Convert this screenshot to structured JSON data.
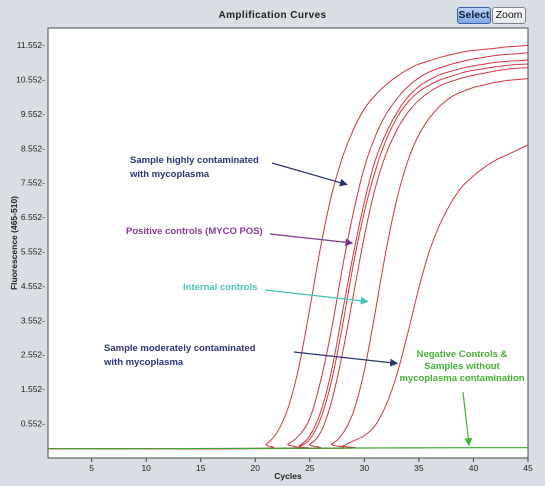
{
  "window": {
    "title": "Amplification Curves",
    "select_label": "Select",
    "zoom_label": "Zoom"
  },
  "chart_data": {
    "type": "line",
    "title": "Amplification Curves",
    "xlabel": "Cycles",
    "ylabel": "Fluorescence (465-510)",
    "xlim": [
      1,
      45
    ],
    "ylim": [
      -0.45,
      12.05
    ],
    "xticks": [
      5,
      10,
      15,
      20,
      25,
      30,
      35,
      40,
      45
    ],
    "xtick_labels": [
      "5",
      "10",
      "15",
      "20",
      "25",
      "30",
      "35",
      "40",
      "45"
    ],
    "yticks": [
      0.552,
      1.552,
      2.552,
      3.552,
      4.552,
      5.552,
      6.552,
      7.552,
      8.552,
      9.552,
      10.552,
      11.552
    ],
    "ytick_labels": [
      "0.552-",
      "1.552-",
      "2.552-",
      "3.552-",
      "4.552-",
      "5.552-",
      "6.552-",
      "7.552-",
      "8.552-",
      "9.552-",
      "10.552-",
      "11.552-"
    ],
    "grid": false,
    "colors": {
      "positive": "#d8343c",
      "negative": "#3fa535",
      "arrow_blue": "#2a3470",
      "arrow_purple": "#7e3c8f",
      "arrow_teal": "#45c2b5",
      "annot_blue": "#2c3480",
      "annot_purple": "#8a3a98",
      "annot_teal": "#4cc3b4",
      "annot_green": "#44b035"
    },
    "baseline": -0.18,
    "series": [
      {
        "color": "#d8343c",
        "x": [
          1,
          20,
          21,
          22,
          23,
          24,
          25,
          26,
          27,
          28,
          29,
          30,
          31,
          32,
          33,
          34,
          35,
          36,
          37,
          38,
          39,
          40,
          41,
          42,
          43,
          44,
          45
        ],
        "y": [
          -0.18,
          -0.17,
          -0.05,
          0.3,
          1.0,
          2.2,
          3.9,
          5.7,
          7.2,
          8.3,
          9.1,
          9.7,
          10.1,
          10.4,
          10.65,
          10.85,
          11.0,
          11.1,
          11.2,
          11.28,
          11.35,
          11.4,
          11.43,
          11.46,
          11.5,
          11.52,
          11.55
        ]
      },
      {
        "color": "#d8343c",
        "x": [
          1,
          22,
          23,
          24,
          25,
          26,
          27,
          28,
          29,
          30,
          31,
          32,
          33,
          34,
          35,
          36,
          37,
          38,
          39,
          40,
          41,
          42,
          43,
          44,
          45
        ],
        "y": [
          -0.18,
          -0.17,
          -0.05,
          0.2,
          0.7,
          1.8,
          3.3,
          5.1,
          6.7,
          8.0,
          8.9,
          9.55,
          10.0,
          10.35,
          10.6,
          10.78,
          10.9,
          11.0,
          11.08,
          11.15,
          11.2,
          11.25,
          11.28,
          11.3,
          11.33
        ]
      },
      {
        "color": "#d8343c",
        "x": [
          1,
          23,
          24,
          25,
          26,
          27,
          28,
          29,
          30,
          31,
          32,
          33,
          34,
          35,
          36,
          37,
          38,
          39,
          40,
          41,
          42,
          43,
          44,
          45
        ],
        "y": [
          -0.18,
          -0.17,
          -0.1,
          0.2,
          0.9,
          2.1,
          3.8,
          5.5,
          7.0,
          8.2,
          9.0,
          9.6,
          10.05,
          10.35,
          10.55,
          10.7,
          10.8,
          10.88,
          10.95,
          11.0,
          11.05,
          11.08,
          11.1,
          11.12
        ]
      },
      {
        "color": "#d8343c",
        "x": [
          1,
          23,
          24,
          25,
          26,
          27,
          28,
          29,
          30,
          31,
          32,
          33,
          34,
          35,
          36,
          37,
          38,
          39,
          40,
          41,
          42,
          43,
          44,
          45
        ],
        "y": [
          -0.18,
          -0.17,
          -0.12,
          0.1,
          0.7,
          1.8,
          3.4,
          5.2,
          6.7,
          7.9,
          8.8,
          9.45,
          9.9,
          10.2,
          10.4,
          10.55,
          10.65,
          10.75,
          10.82,
          10.87,
          10.92,
          10.96,
          10.99,
          11.0
        ]
      },
      {
        "color": "#d8343c",
        "x": [
          1,
          24,
          25,
          26,
          27,
          28,
          29,
          30,
          31,
          32,
          33,
          34,
          35,
          36,
          37,
          38,
          39,
          40,
          41,
          42,
          43,
          44,
          45
        ],
        "y": [
          -0.18,
          -0.17,
          -0.05,
          0.3,
          1.2,
          2.6,
          4.3,
          6.0,
          7.4,
          8.4,
          9.1,
          9.6,
          9.95,
          10.2,
          10.38,
          10.5,
          10.6,
          10.68,
          10.74,
          10.8,
          10.85,
          10.88,
          10.9
        ]
      },
      {
        "color": "#d8343c",
        "x": [
          1,
          26,
          27,
          28,
          29,
          30,
          31,
          32,
          33,
          34,
          35,
          36,
          37,
          38,
          39,
          40,
          41,
          42,
          43,
          44,
          45
        ],
        "y": [
          -0.18,
          -0.17,
          -0.05,
          0.25,
          0.9,
          2.1,
          3.8,
          5.6,
          7.1,
          8.2,
          8.95,
          9.45,
          9.8,
          10.05,
          10.2,
          10.32,
          10.4,
          10.47,
          10.52,
          10.55,
          10.58
        ]
      },
      {
        "color": "#d8343c",
        "x": [
          1,
          27,
          28,
          29,
          30,
          31,
          32,
          33,
          34,
          35,
          36,
          37,
          38,
          39,
          40,
          41,
          42,
          43,
          44,
          45
        ],
        "y": [
          -0.18,
          -0.17,
          -0.1,
          0.05,
          0.2,
          0.5,
          1.1,
          2.0,
          3.2,
          4.5,
          5.6,
          6.4,
          7.0,
          7.45,
          7.75,
          8.0,
          8.2,
          8.35,
          8.5,
          8.65
        ]
      },
      {
        "color": "#3fa535",
        "x": [
          1,
          10,
          20,
          30,
          40,
          45
        ],
        "y": [
          -0.18,
          -0.18,
          -0.17,
          -0.16,
          -0.15,
          -0.15
        ]
      }
    ],
    "annotations": [
      {
        "text_lines": [
          "Sample highly contaminated",
          "with mycoplasma"
        ],
        "color_key": "annot_blue",
        "arrow_key": "arrow_blue",
        "arrow_to": [
          28.4,
          7.5
        ]
      },
      {
        "text_lines": [
          "Positive controls (MYCO POS)"
        ],
        "color_key": "annot_purple",
        "arrow_key": "arrow_purple",
        "arrow_to": [
          28.9,
          5.8
        ]
      },
      {
        "text_lines": [
          "Internal controls"
        ],
        "color_key": "annot_teal",
        "arrow_key": "arrow_teal",
        "arrow_to": [
          30.3,
          4.1
        ]
      },
      {
        "text_lines": [
          "Sample moderately contaminated",
          "with mycoplasma"
        ],
        "color_key": "annot_blue",
        "arrow_key": "arrow_blue",
        "arrow_to": [
          33.0,
          2.3
        ]
      },
      {
        "text_lines": [
          "Negative Controls &",
          "Samples without",
          "mycoplasma contamination"
        ],
        "color_key": "annot_green",
        "arrow_key": "annot_green",
        "arrow_to": [
          39.6,
          -0.08
        ]
      }
    ]
  }
}
